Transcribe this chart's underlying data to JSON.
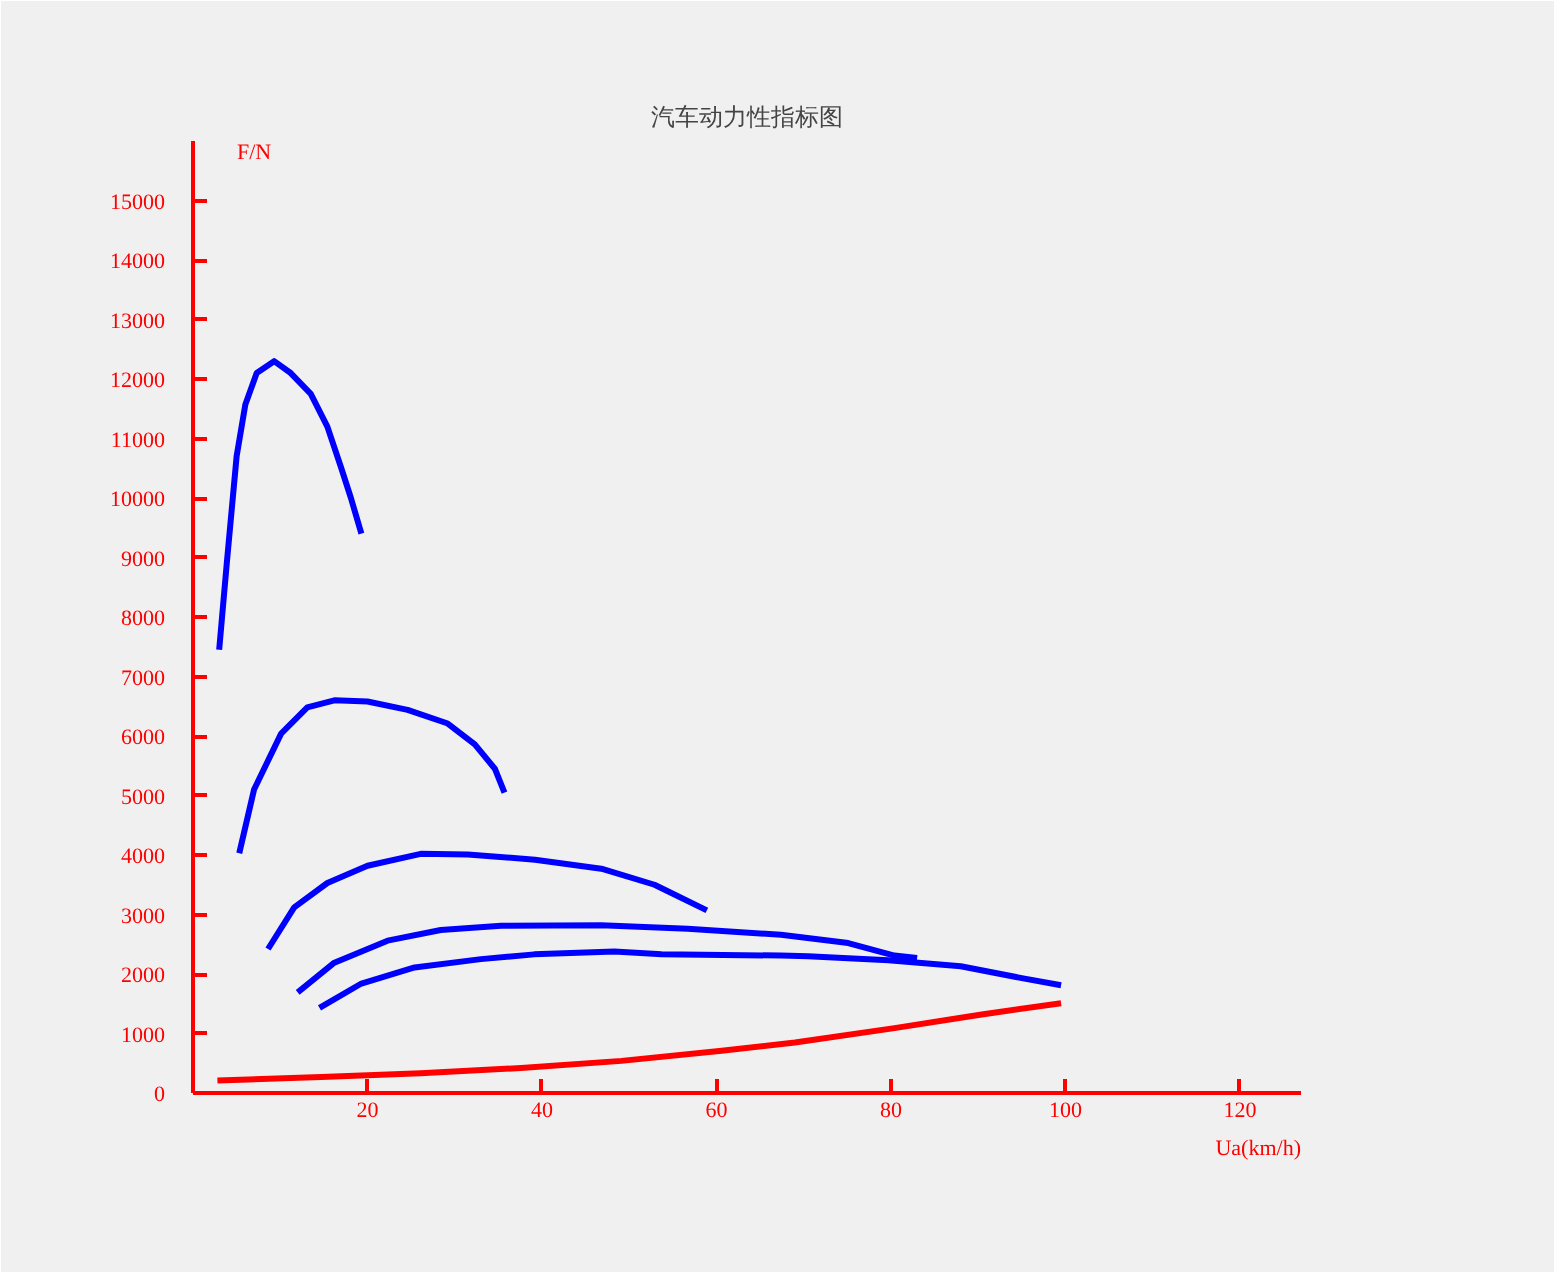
{
  "chart_data": {
    "type": "line",
    "title": "汽车动力性指标图",
    "xlabel": "Ua(km/h)",
    "ylabel": "F/N",
    "xlim": [
      0,
      127
    ],
    "ylim": [
      0,
      16000
    ],
    "xticks": [
      20,
      40,
      60,
      80,
      100,
      120
    ],
    "yticks": [
      0,
      1000,
      2000,
      3000,
      4000,
      5000,
      6000,
      7000,
      8000,
      9000,
      10000,
      11000,
      12000,
      13000,
      14000,
      15000
    ],
    "grid": false,
    "marker": "none",
    "line_style": "solid",
    "series": [
      {
        "color": "#0000ff",
        "x": [
          3.0,
          3.9,
          5.0,
          6.0,
          7.3,
          9.3,
          11.2,
          13.5,
          15.4,
          17.0,
          18.1,
          19.3
        ],
        "values": [
          7450,
          8950,
          10700,
          11570,
          12100,
          12300,
          12100,
          11750,
          11200,
          10500,
          10000,
          9400
        ]
      },
      {
        "color": "#0000ff",
        "x": [
          5.3,
          7.0,
          10.1,
          13.1,
          16.2,
          20.0,
          24.6,
          29.2,
          32.3,
          34.6,
          35.7
        ],
        "values": [
          4030,
          5100,
          6040,
          6480,
          6600,
          6580,
          6440,
          6210,
          5860,
          5450,
          5050
        ]
      },
      {
        "color": "#0000ff",
        "x": [
          8.6,
          11.6,
          15.4,
          20.0,
          26.1,
          31.5,
          39.2,
          46.8,
          52.9,
          58.9
        ],
        "values": [
          2420,
          3120,
          3530,
          3820,
          4020,
          4010,
          3920,
          3770,
          3500,
          3070
        ]
      },
      {
        "color": "#0000ff",
        "x": [
          12.0,
          16.2,
          22.3,
          28.4,
          35.3,
          46.8,
          56.7,
          67.4,
          75.1,
          80.4,
          83.0
        ],
        "values": [
          1690,
          2190,
          2560,
          2740,
          2810,
          2820,
          2760,
          2660,
          2520,
          2310,
          2270
        ]
      },
      {
        "color": "#0000ff",
        "x": [
          14.5,
          19.3,
          25.4,
          33.0,
          39.1,
          48.3,
          53.7,
          67.4,
          70.5,
          79.7,
          88.0,
          95.0,
          99.5
        ],
        "values": [
          1430,
          1840,
          2110,
          2250,
          2330,
          2380,
          2330,
          2310,
          2300,
          2230,
          2130,
          1930,
          1810
        ]
      },
      {
        "color": "#ff0000",
        "x": [
          2.8,
          14.7,
          26.1,
          37.6,
          49.1,
          60.6,
          69.0,
          80.4,
          90.4,
          99.5
        ],
        "values": [
          210,
          270,
          330,
          420,
          540,
          710,
          850,
          1090,
          1320,
          1510
        ]
      }
    ]
  }
}
